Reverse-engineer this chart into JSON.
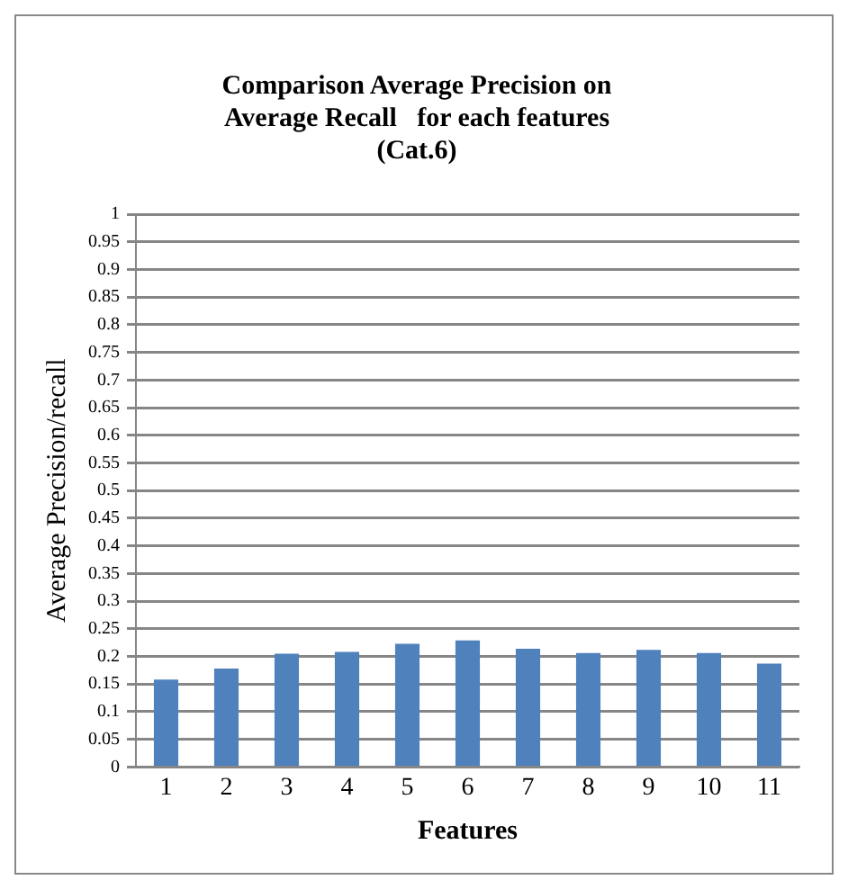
{
  "chart_data": {
    "type": "bar",
    "title": "Comparison Average Precision on\nAverage Recall   for each features\n(Cat.6)",
    "xlabel": "Features",
    "ylabel": "Average Precision/recall",
    "categories": [
      "1",
      "2",
      "3",
      "4",
      "5",
      "6",
      "7",
      "8",
      "9",
      "10",
      "11"
    ],
    "values": [
      0.158,
      0.178,
      0.205,
      0.208,
      0.223,
      0.229,
      0.214,
      0.206,
      0.212,
      0.206,
      0.187
    ],
    "color": "#4f81bd",
    "ylim": [
      0,
      1
    ],
    "yticks": [
      0,
      0.05,
      0.1,
      0.15,
      0.2,
      0.25,
      0.3,
      0.35,
      0.4,
      0.45,
      0.5,
      0.55,
      0.6,
      0.65,
      0.7,
      0.75,
      0.8,
      0.85,
      0.9,
      0.95,
      1
    ],
    "grid": "y",
    "legend": false
  }
}
